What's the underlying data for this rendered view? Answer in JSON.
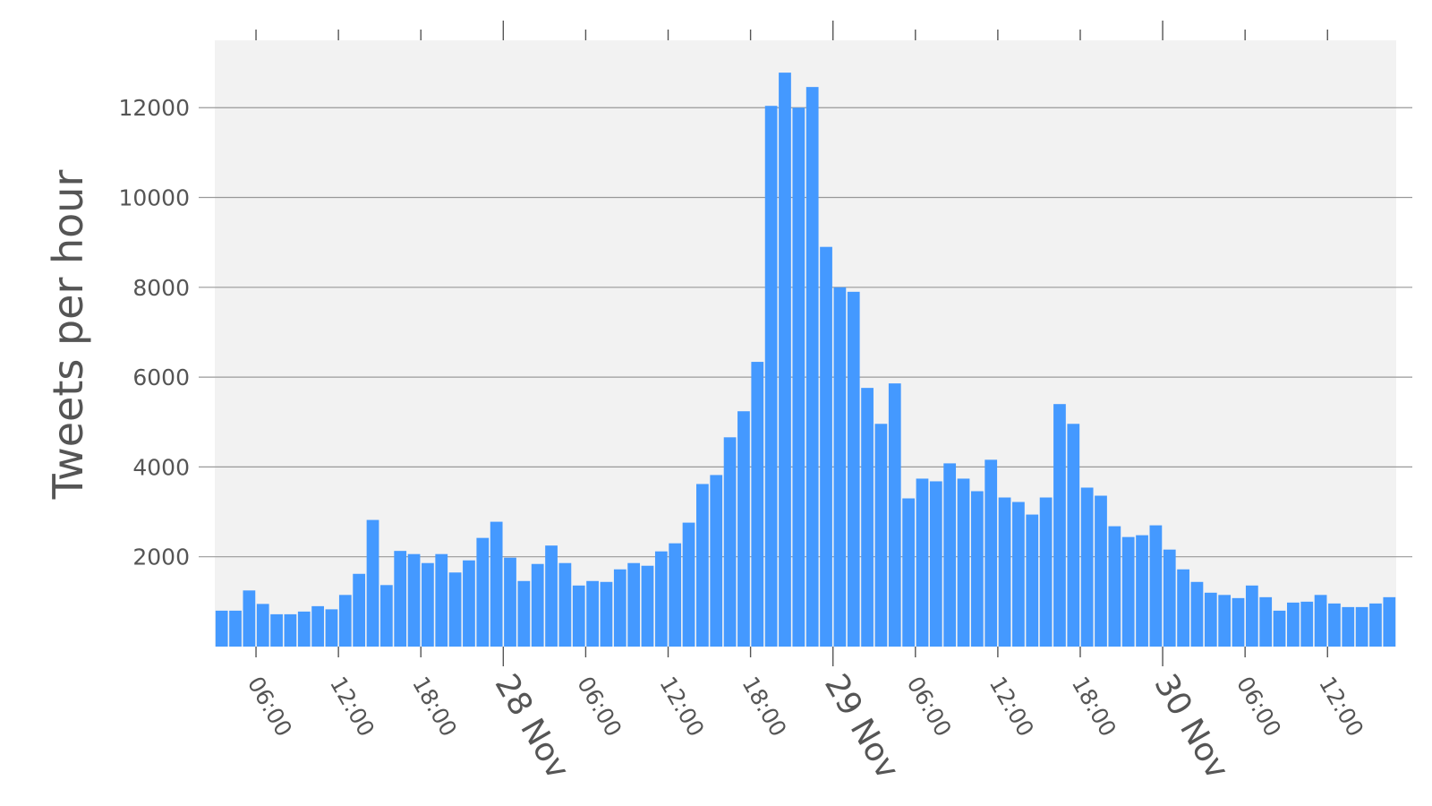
{
  "chart_data": {
    "type": "bar",
    "title": "",
    "xlabel": "",
    "ylabel": "Tweets per hour",
    "bar_color": "#4499ff",
    "plot_background": "#f2f2f2",
    "grid": "horizontal",
    "x_unit": "hour",
    "x_start": "27 Nov 03:00",
    "x_range": [
      "27 Nov 03:00",
      "30 Nov 15:00"
    ],
    "ylim": [
      0,
      13500
    ],
    "yticks": [
      2000,
      4000,
      6000,
      8000,
      10000,
      12000
    ],
    "ytick_labels": [
      "2000",
      "4000",
      "6000",
      "8000",
      "10000",
      "12000"
    ],
    "xticks": [
      {
        "label": "06:00",
        "major": false
      },
      {
        "label": "12:00",
        "major": false
      },
      {
        "label": "18:00",
        "major": false
      },
      {
        "label": "28 Nov",
        "major": true
      },
      {
        "label": "06:00",
        "major": false
      },
      {
        "label": "12:00",
        "major": false
      },
      {
        "label": "18:00",
        "major": false
      },
      {
        "label": "29 Nov",
        "major": true
      },
      {
        "label": "06:00",
        "major": false
      },
      {
        "label": "12:00",
        "major": false
      },
      {
        "label": "18:00",
        "major": false
      },
      {
        "label": "30 Nov",
        "major": true
      },
      {
        "label": "06:00",
        "major": false
      },
      {
        "label": "12:00",
        "major": false
      }
    ],
    "values": [
      800,
      800,
      1250,
      950,
      720,
      720,
      780,
      900,
      830,
      1150,
      1620,
      2820,
      1370,
      2130,
      2060,
      1860,
      2060,
      1650,
      1920,
      2420,
      2780,
      1980,
      1460,
      1840,
      2250,
      1860,
      1360,
      1460,
      1440,
      1720,
      1860,
      1800,
      2120,
      2300,
      2760,
      3620,
      3820,
      4660,
      5240,
      6340,
      12040,
      12780,
      12000,
      12460,
      8900,
      8000,
      7900,
      5760,
      4960,
      5860,
      3300,
      3740,
      3680,
      4080,
      3740,
      3460,
      4160,
      3320,
      3220,
      2940,
      3320,
      5400,
      4960,
      3540,
      3360,
      2680,
      2440,
      2480,
      2700,
      2160,
      1720,
      1440,
      1200,
      1150,
      1080,
      1360,
      1100,
      800,
      980,
      1000,
      1150,
      960,
      880,
      880,
      960,
      1100
    ]
  }
}
